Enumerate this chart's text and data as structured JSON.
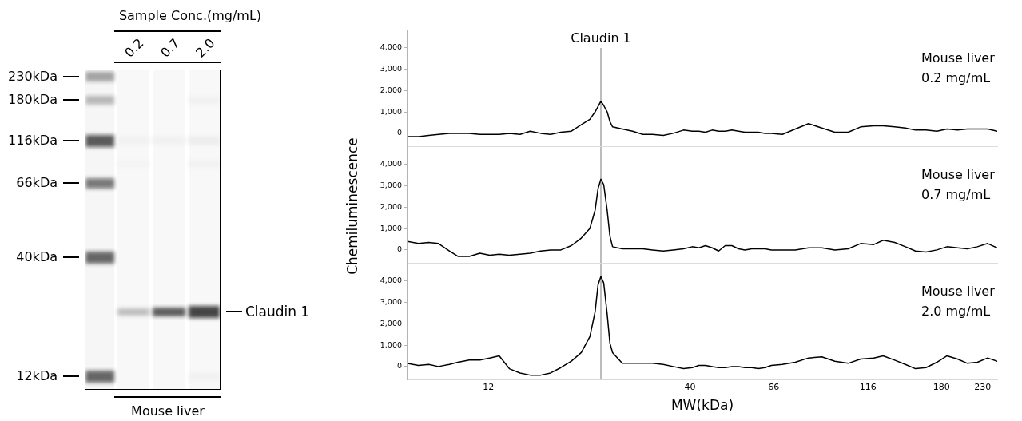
{
  "chart_data": [
    {
      "type": "other",
      "title": "Sample Conc.(mg/mL)",
      "categories": [
        "0.2",
        "0.7",
        "2.0"
      ],
      "xlabel": "Mouse liver",
      "annotations": [
        "230kDa",
        "180kDa",
        "116kDa",
        "66kDa",
        "40kDa",
        "12kDa",
        "Claudin 1"
      ]
    },
    {
      "type": "line",
      "x": [
        7.4,
        7.9,
        8.4,
        8.9,
        9.5,
        10.0,
        10.7,
        11.4,
        12.1,
        12.8,
        13.6,
        14.5,
        15.4,
        16.4,
        17.4,
        18.5,
        19.7,
        20.9,
        22.0,
        22.7,
        23.1,
        23.5,
        23.9,
        24.4,
        24.8,
        25.2,
        26.7,
        28.4,
        30.2,
        32.0,
        34.1,
        36.2,
        38.5,
        40.6,
        42.2,
        43.9,
        45.7,
        47.5,
        49.4,
        51.4,
        53.5,
        55.6,
        57.9,
        60.2,
        62.6,
        65.1,
        69.5,
        75.1,
        81.3,
        88.0,
        95.1,
        103,
        111,
        120,
        127,
        136,
        145,
        154,
        164,
        175,
        186,
        198,
        210,
        223,
        237,
        251
      ],
      "series": [
        {
          "name": "Mouse liver 0.2 mg/mL",
          "color": "#000000",
          "values": [
            -150,
            -150,
            -100,
            -50,
            0,
            0,
            0,
            -50,
            -50,
            -50,
            0,
            -50,
            100,
            0,
            -50,
            50,
            100,
            400,
            650,
            1000,
            1250,
            1500,
            1300,
            1000,
            550,
            300,
            200,
            100,
            -50,
            -50,
            -100,
            0,
            150,
            100,
            100,
            50,
            150,
            100,
            100,
            150,
            100,
            50,
            50,
            50,
            0,
            0,
            -50,
            200,
            450,
            250,
            50,
            50,
            300,
            350,
            350,
            300,
            250,
            150,
            150,
            100,
            200,
            150,
            200,
            200,
            200,
            100
          ]
        }
      ],
      "xlim": [
        7.4,
        251
      ],
      "xticks": [
        12,
        40,
        66,
        116,
        180,
        230
      ],
      "log": "x",
      "ylim": [
        -600,
        4800
      ],
      "yticks": [
        {
          "value": 0,
          "label": "0"
        },
        {
          "value": 1000,
          "label": "1,000"
        },
        {
          "value": 2000,
          "label": "2,000"
        },
        {
          "value": 3000,
          "label": "3,000"
        },
        {
          "value": 4000,
          "label": "4,000"
        }
      ],
      "ref_lines": [
        {
          "axis": "x",
          "value": 23.5,
          "label": "Claudin 1",
          "color": "#a6a6a6"
        }
      ],
      "tick_labels": "y"
    },
    {
      "type": "line",
      "x": [
        7.4,
        7.9,
        8.4,
        8.9,
        9.5,
        10.0,
        10.7,
        11.4,
        12.1,
        12.8,
        13.6,
        14.5,
        15.4,
        16.4,
        17.4,
        18.5,
        19.7,
        20.9,
        22.0,
        22.7,
        23.1,
        23.5,
        23.9,
        24.4,
        24.8,
        25.2,
        26.7,
        28.4,
        30.2,
        32.0,
        34.1,
        36.2,
        38.5,
        40.6,
        42.2,
        43.9,
        45.7,
        47.5,
        49.4,
        51.4,
        53.5,
        55.6,
        57.9,
        60.2,
        62.6,
        65.1,
        69.5,
        75.1,
        81.3,
        88.0,
        95.1,
        103,
        111,
        120,
        127,
        136,
        145,
        154,
        164,
        175,
        186,
        198,
        210,
        223,
        237,
        251
      ],
      "series": [
        {
          "name": "Mouse liver 0.7 mg/mL",
          "color": "#000000",
          "values": [
            400,
            300,
            350,
            300,
            -50,
            -300,
            -300,
            -150,
            -250,
            -200,
            -250,
            -200,
            -150,
            -50,
            0,
            0,
            200,
            550,
            1000,
            1850,
            2850,
            3300,
            3050,
            1850,
            650,
            150,
            50,
            50,
            50,
            0,
            -50,
            0,
            50,
            150,
            100,
            200,
            100,
            -50,
            200,
            200,
            50,
            0,
            50,
            50,
            50,
            0,
            0,
            0,
            100,
            100,
            0,
            50,
            300,
            250,
            450,
            350,
            150,
            -50,
            -100,
            0,
            150,
            100,
            50,
            150,
            300,
            100
          ]
        }
      ],
      "xlim": [
        7.4,
        251
      ],
      "xticks": [
        12,
        40,
        66,
        116,
        180,
        230
      ],
      "log": "x",
      "ylim": [
        -600,
        4800
      ],
      "yticks": [
        {
          "value": 0,
          "label": "0"
        },
        {
          "value": 1000,
          "label": "1,000"
        },
        {
          "value": 2000,
          "label": "2,000"
        },
        {
          "value": 3000,
          "label": "3,000"
        },
        {
          "value": 4000,
          "label": "4,000"
        }
      ],
      "ylabel": "Chemiluminescence",
      "ref_lines": [
        {
          "axis": "x",
          "value": 23.5,
          "color": "#a6a6a6"
        }
      ],
      "tick_labels": "y"
    },
    {
      "type": "line",
      "x": [
        7.4,
        7.9,
        8.4,
        8.9,
        9.5,
        10.0,
        10.7,
        11.4,
        12.1,
        12.8,
        13.6,
        14.5,
        15.4,
        16.4,
        17.4,
        18.5,
        19.7,
        20.9,
        22.0,
        22.7,
        23.1,
        23.5,
        23.9,
        24.4,
        24.8,
        25.2,
        26.7,
        28.4,
        30.2,
        32.0,
        34.1,
        36.2,
        38.5,
        40.6,
        42.2,
        43.9,
        45.7,
        47.5,
        49.4,
        51.4,
        53.5,
        55.6,
        57.9,
        60.2,
        62.6,
        65.1,
        69.5,
        75.1,
        81.3,
        88.0,
        95.1,
        103,
        111,
        120,
        127,
        136,
        145,
        154,
        164,
        175,
        186,
        198,
        210,
        223,
        237,
        251
      ],
      "series": [
        {
          "name": "Mouse liver 2.0 mg/mL",
          "color": "#000000",
          "values": [
            150,
            50,
            100,
            0,
            100,
            200,
            300,
            300,
            400,
            500,
            -100,
            -300,
            -400,
            -400,
            -300,
            -50,
            250,
            650,
            1400,
            2550,
            3800,
            4200,
            3900,
            2450,
            1100,
            650,
            150,
            150,
            150,
            150,
            100,
            0,
            -100,
            -50,
            50,
            50,
            0,
            -50,
            -50,
            0,
            0,
            -50,
            -50,
            -100,
            -50,
            50,
            100,
            200,
            400,
            450,
            250,
            150,
            350,
            400,
            500,
            300,
            100,
            -100,
            -50,
            200,
            500,
            350,
            150,
            200,
            400,
            250
          ]
        }
      ],
      "xlim": [
        7.4,
        251
      ],
      "xticks": [
        12,
        40,
        66,
        116,
        180,
        230
      ],
      "log": "x",
      "xlabel": "MW(kDa)",
      "ylim": [
        -600,
        4800
      ],
      "yticks": [
        {
          "value": 0,
          "label": "0"
        },
        {
          "value": 1000,
          "label": "1,000"
        },
        {
          "value": 2000,
          "label": "2,000"
        },
        {
          "value": 3000,
          "label": "3,000"
        },
        {
          "value": 4000,
          "label": "4,000"
        }
      ],
      "ref_lines": [
        {
          "axis": "x",
          "value": 23.5,
          "color": "#a6a6a6"
        }
      ]
    }
  ]
}
